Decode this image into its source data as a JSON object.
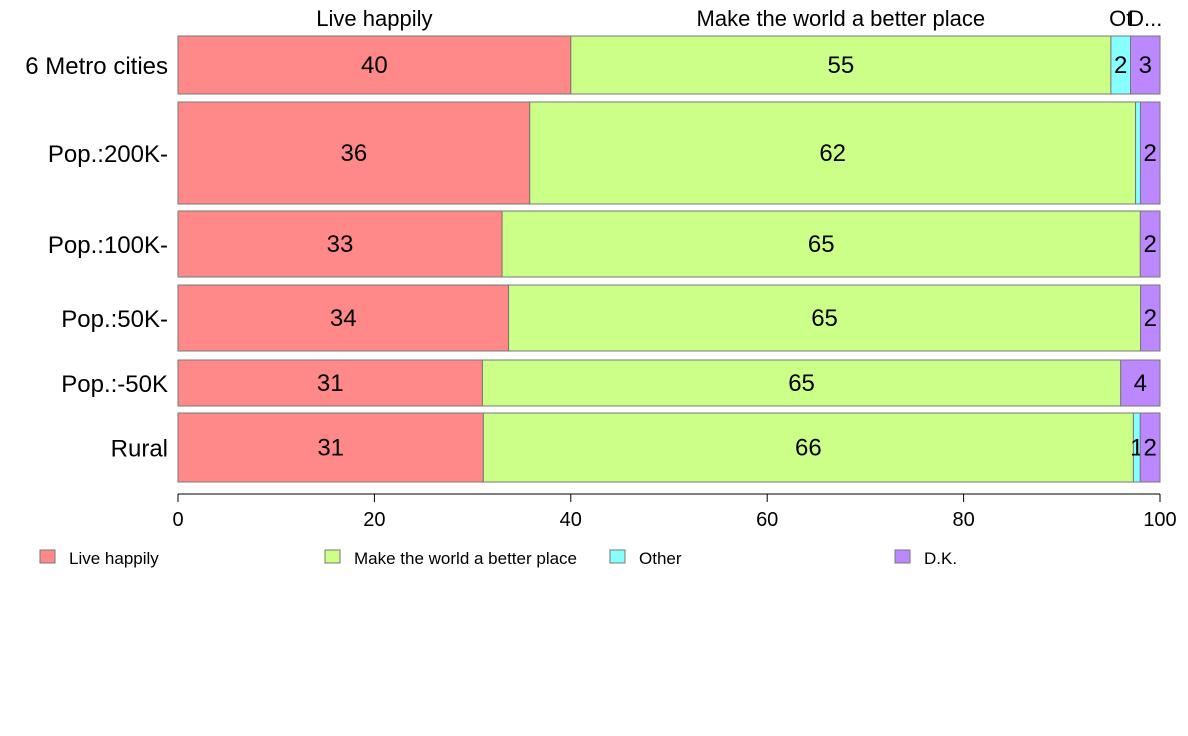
{
  "chart_data": {
    "type": "bar",
    "orientation": "horizontal",
    "stacked": true,
    "categories": [
      "6 Metro cities",
      "Pop.:200K-",
      "Pop.:100K-",
      "Pop.:50K-",
      "Pop.:-50K",
      "Rural"
    ],
    "series": [
      {
        "name": "Live happily",
        "color": "#ff8888",
        "values": [
          40,
          36,
          33,
          34,
          31,
          31
        ]
      },
      {
        "name": "Make the world a better place",
        "color": "#ccff88",
        "values": [
          55,
          62,
          65,
          65,
          65,
          66
        ]
      },
      {
        "name": "Other",
        "color": "#88ffff",
        "values": [
          2,
          0.5,
          0,
          0,
          0,
          0.7
        ]
      },
      {
        "name": "D.K.",
        "color": "#bb88ff",
        "values": [
          3,
          2,
          2,
          2,
          4,
          2
        ]
      }
    ],
    "value_labels": [
      [
        "40",
        "55",
        "2",
        "3"
      ],
      [
        "36",
        "62",
        "",
        "2"
      ],
      [
        "33",
        "65",
        "",
        "2"
      ],
      [
        "34",
        "65",
        "",
        "2"
      ],
      [
        "31",
        "65",
        "",
        "4"
      ],
      [
        "31",
        "66",
        "1",
        "2"
      ]
    ],
    "column_labels": [
      "Live happily",
      "Make the world a better place",
      "Ot",
      "D..."
    ],
    "xlim": [
      0,
      100
    ],
    "xticks": [
      0,
      20,
      40,
      60,
      80,
      100
    ],
    "legend_position": "bottom",
    "grid": false
  }
}
